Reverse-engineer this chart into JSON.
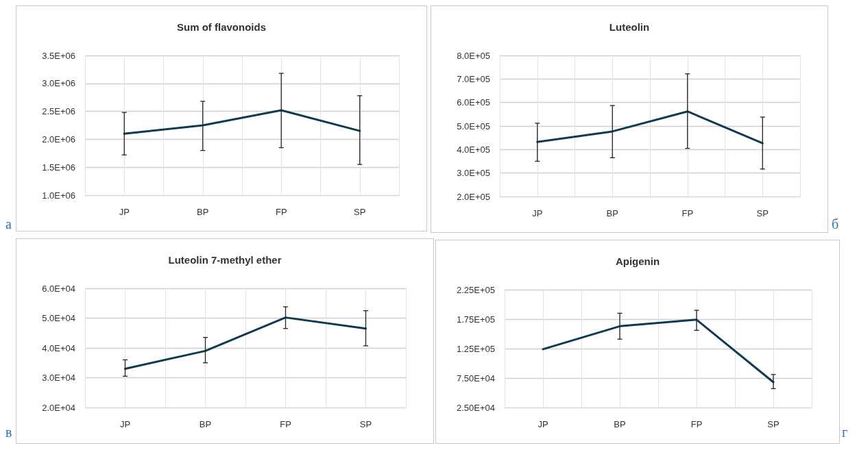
{
  "chart_data": [
    {
      "type": "line",
      "title": "Sum of flavonoids",
      "categories": [
        "JP",
        "BP",
        "FP",
        "SP"
      ],
      "series": [
        {
          "color": "#0e3a52",
          "values": [
            2100000,
            2250000,
            2520000,
            2150000
          ],
          "errors": [
            [
              1720000,
              2480000
            ],
            [
              1800000,
              2680000
            ],
            [
              1850000,
              3180000
            ],
            [
              1550000,
              2780000
            ]
          ]
        }
      ],
      "ylim": [
        1000000,
        3500000
      ],
      "yticks": [
        {
          "value": 1000000,
          "label": "1.0E+06"
        },
        {
          "value": 1500000,
          "label": "1.5E+06"
        },
        {
          "value": 2000000,
          "label": "2.0E+06"
        },
        {
          "value": 2500000,
          "label": "2.5E+06"
        },
        {
          "value": 3000000,
          "label": "3.0E+06"
        },
        {
          "value": 3500000,
          "label": "3.5E+06"
        }
      ],
      "grid": true,
      "marker": "none",
      "line_style": "solid",
      "annotations": [
        "а"
      ]
    },
    {
      "type": "line",
      "title": "Luteolin",
      "categories": [
        "JP",
        "BP",
        "FP",
        "SP"
      ],
      "series": [
        {
          "color": "#0e3a52",
          "values": [
            432000,
            477000,
            562000,
            427000
          ],
          "errors": [
            [
              350000,
              512000
            ],
            [
              365000,
              587000
            ],
            [
              405000,
              722000
            ],
            [
              317000,
              538000
            ]
          ]
        }
      ],
      "ylim": [
        200000,
        800000
      ],
      "yticks": [
        {
          "value": 200000,
          "label": "2.0E+05"
        },
        {
          "value": 300000,
          "label": "3.0E+05"
        },
        {
          "value": 400000,
          "label": "4.0E+05"
        },
        {
          "value": 500000,
          "label": "5.0E+05"
        },
        {
          "value": 600000,
          "label": "6.0E+05"
        },
        {
          "value": 700000,
          "label": "7.0E+05"
        },
        {
          "value": 800000,
          "label": "8.0E+05"
        }
      ],
      "grid": true,
      "marker": "none",
      "line_style": "solid",
      "annotations": [
        "б"
      ]
    },
    {
      "type": "line",
      "title": "Luteolin 7-methyl ether",
      "categories": [
        "JP",
        "BP",
        "FP",
        "SP"
      ],
      "series": [
        {
          "color": "#0e3a52",
          "values": [
            33000,
            39000,
            50200,
            46500
          ],
          "errors": [
            [
              30500,
              36000
            ],
            [
              35000,
              43500
            ],
            [
              46500,
              53800
            ],
            [
              40700,
              52500
            ]
          ]
        }
      ],
      "ylim": [
        20000,
        60000
      ],
      "yticks": [
        {
          "value": 20000,
          "label": "2.0E+04"
        },
        {
          "value": 30000,
          "label": "3.0E+04"
        },
        {
          "value": 40000,
          "label": "4.0E+04"
        },
        {
          "value": 50000,
          "label": "5.0E+04"
        },
        {
          "value": 60000,
          "label": "6.0E+04"
        }
      ],
      "grid": true,
      "marker": "none",
      "line_style": "solid",
      "annotations": [
        "в"
      ]
    },
    {
      "type": "line",
      "title": "Apigenin",
      "categories": [
        "JP",
        "BP",
        "FP",
        "SP"
      ],
      "series": [
        {
          "color": "#0e3a52",
          "values": [
            124000,
            163000,
            174000,
            68000
          ],
          "errors": [
            null,
            [
              141000,
              185000
            ],
            [
              156000,
              190000
            ],
            [
              57000,
              81000
            ]
          ]
        }
      ],
      "ylim": [
        25000,
        225000
      ],
      "yticks": [
        {
          "value": 25000,
          "label": "2.50E+04"
        },
        {
          "value": 75000,
          "label": "7.50E+04"
        },
        {
          "value": 125000,
          "label": "1.25E+05"
        },
        {
          "value": 175000,
          "label": "1.75E+05"
        },
        {
          "value": 225000,
          "label": "2.25E+05"
        }
      ],
      "grid": true,
      "marker": "none",
      "line_style": "solid",
      "annotations": [
        "г"
      ]
    }
  ]
}
